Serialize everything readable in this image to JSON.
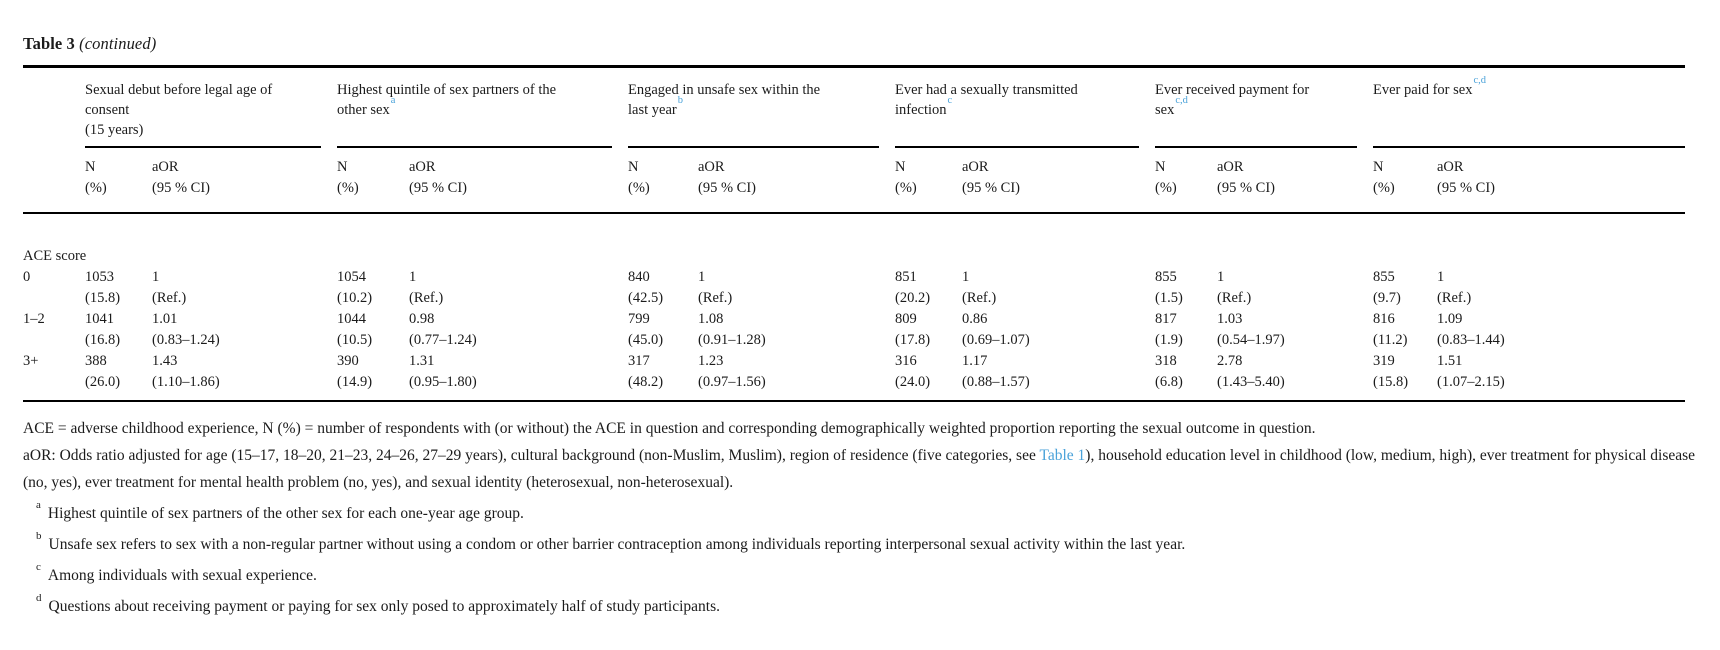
{
  "title": {
    "label": "Table 3",
    "continued": "(continued)"
  },
  "colors": {
    "link_blue": "#4aa2d9",
    "text": "#1b1b1b",
    "rule": "#000000"
  },
  "table": {
    "groups": [
      {
        "lines": [
          "Sexual debut before legal age of",
          "consent",
          "(15 years)"
        ],
        "sup": ""
      },
      {
        "lines": [
          "Highest quintile of sex partners of the",
          "other sex"
        ],
        "sup": "a"
      },
      {
        "lines": [
          "Engaged in unsafe sex within the",
          "last year"
        ],
        "sup": "b"
      },
      {
        "lines": [
          "Ever had a sexually transmitted",
          "infection"
        ],
        "sup": "c"
      },
      {
        "lines": [
          "Ever received payment for",
          "sex"
        ],
        "sup": "c,d"
      },
      {
        "lines": [
          "Ever paid for sex"
        ],
        "sup": "c,d"
      }
    ],
    "subheader": {
      "n": [
        "N",
        "(%)"
      ],
      "aor": [
        "aOR",
        "(95 % CI)"
      ]
    },
    "section_label": "ACE score",
    "rows": [
      {
        "label": "0",
        "cells": [
          {
            "n": "1053",
            "pct": "(15.8)",
            "aor": "1",
            "ci": "(Ref.)"
          },
          {
            "n": "1054",
            "pct": "(10.2)",
            "aor": "1",
            "ci": "(Ref.)"
          },
          {
            "n": "840",
            "pct": "(42.5)",
            "aor": "1",
            "ci": "(Ref.)"
          },
          {
            "n": "851",
            "pct": "(20.2)",
            "aor": "1",
            "ci": "(Ref.)"
          },
          {
            "n": "855",
            "pct": "(1.5)",
            "aor": "1",
            "ci": "(Ref.)"
          },
          {
            "n": "855",
            "pct": "(9.7)",
            "aor": "1",
            "ci": "(Ref.)"
          }
        ]
      },
      {
        "label": "1–2",
        "cells": [
          {
            "n": "1041",
            "pct": "(16.8)",
            "aor": "1.01",
            "ci": "(0.83–1.24)"
          },
          {
            "n": "1044",
            "pct": "(10.5)",
            "aor": "0.98",
            "ci": "(0.77–1.24)"
          },
          {
            "n": "799",
            "pct": "(45.0)",
            "aor": "1.08",
            "ci": "(0.91–1.28)"
          },
          {
            "n": "809",
            "pct": "(17.8)",
            "aor": "0.86",
            "ci": "(0.69–1.07)"
          },
          {
            "n": "817",
            "pct": "(1.9)",
            "aor": "1.03",
            "ci": "(0.54–1.97)"
          },
          {
            "n": "816",
            "pct": "(11.2)",
            "aor": "1.09",
            "ci": "(0.83–1.44)"
          }
        ]
      },
      {
        "label": "3+",
        "cells": [
          {
            "n": "388",
            "pct": "(26.0)",
            "aor": "1.43",
            "ci": "(1.10–1.86)"
          },
          {
            "n": "390",
            "pct": "(14.9)",
            "aor": "1.31",
            "ci": "(0.95–1.80)"
          },
          {
            "n": "317",
            "pct": "(48.2)",
            "aor": "1.23",
            "ci": "(0.97–1.56)"
          },
          {
            "n": "316",
            "pct": "(24.0)",
            "aor": "1.17",
            "ci": "(0.88–1.57)"
          },
          {
            "n": "318",
            "pct": "(6.8)",
            "aor": "2.78",
            "ci": "(1.43–5.40)"
          },
          {
            "n": "319",
            "pct": "(15.8)",
            "aor": "1.51",
            "ci": "(1.07–2.15)"
          }
        ]
      }
    ]
  },
  "footnotes": {
    "ace": "ACE = adverse childhood experience, N (%) = number of respondents with (or without) the ACE in question and corresponding demographically weighted proportion reporting the sexual outcome in question.",
    "aor_before": "aOR: Odds ratio adjusted for age (15–17, 18–20, 21–23, 24–26, 27–29 years), cultural background (non-Muslim, Muslim), region of residence (five categories, see ",
    "aor_link": "Table 1",
    "aor_after": "), household education level in childhood (low, medium, high), ever treatment for physical disease (no, yes), ever treatment for mental health problem (no, yes), and sexual identity (heterosexual, non-heterosexual).",
    "lettered": [
      {
        "sup": "a",
        "text": "Highest quintile of sex partners of the other sex for each one-year age group."
      },
      {
        "sup": "b",
        "text": "Unsafe sex refers to sex with a non-regular partner without using a condom or other barrier contraception among individuals reporting interpersonal sexual activity within the last year."
      },
      {
        "sup": "c",
        "text": "Among individuals with sexual experience."
      },
      {
        "sup": "d",
        "text": "Questions about receiving payment or paying for sex only posed to approximately half of study participants."
      }
    ]
  }
}
